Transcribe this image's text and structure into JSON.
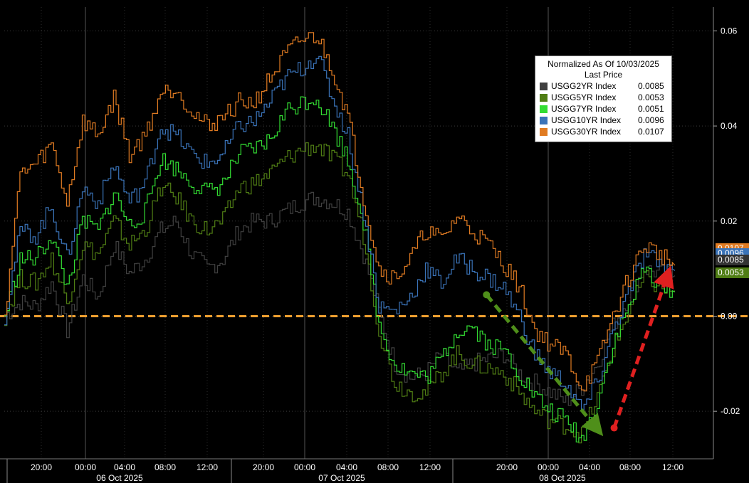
{
  "chart_data": {
    "type": "line",
    "title": "",
    "xlabel": "",
    "ylabel": "",
    "ylim": [
      -0.03,
      0.065
    ],
    "y_ticks": [
      "0.06",
      "0.04",
      "0.02",
      "0.00",
      "-0.02"
    ],
    "y_tick_values": [
      0.06,
      0.04,
      0.02,
      0.0,
      -0.02
    ],
    "x_ticks": [
      "20:00",
      "00:00",
      "04:00",
      "08:00",
      "12:00",
      "20:00",
      "00:00",
      "04:00",
      "08:00",
      "12:00",
      "20:00",
      "00:00",
      "04:00",
      "08:00",
      "12:00"
    ],
    "date_labels": [
      "06 Oct 2025",
      "07 Oct 2025",
      "08 Oct 2025"
    ],
    "legend": {
      "title_line1": "Normalized As Of 10/03/2025",
      "title_line2": "Last Price",
      "placement": "top-right"
    },
    "series": [
      {
        "name": "USGG2YR Index",
        "last": "0.0085",
        "color": "#404040",
        "values": [
          0,
          0.003,
          0.002,
          0.007,
          -0.003,
          0.008,
          0.004,
          0.015,
          0.009,
          0.012,
          0.018,
          0.02,
          0.013,
          0.01,
          0.012,
          0.018,
          0.02,
          0.02,
          0.022,
          0.024,
          0.025,
          0.024,
          0.022,
          0.013,
          0.001,
          -0.01,
          -0.013,
          -0.012,
          -0.008,
          -0.012,
          -0.01,
          -0.009,
          -0.008,
          -0.012,
          -0.014,
          -0.016,
          -0.018,
          -0.015,
          -0.01,
          -0.002,
          0.004,
          0.01,
          0.009,
          0.0085
        ]
      },
      {
        "name": "USGG5YR Index",
        "last": "0.0053",
        "color": "#4f7d14",
        "values": [
          0,
          0.008,
          0.007,
          0.012,
          0.003,
          0.015,
          0.013,
          0.02,
          0.015,
          0.018,
          0.027,
          0.025,
          0.02,
          0.018,
          0.02,
          0.027,
          0.028,
          0.03,
          0.033,
          0.035,
          0.036,
          0.033,
          0.03,
          0.017,
          -0.003,
          -0.014,
          -0.016,
          -0.016,
          -0.012,
          -0.008,
          -0.01,
          -0.011,
          -0.012,
          -0.016,
          -0.02,
          -0.022,
          -0.023,
          -0.025,
          -0.017,
          -0.007,
          0.001,
          0.008,
          0.006,
          0.0053
        ]
      },
      {
        "name": "USGG7YR Index",
        "last": "0.0051",
        "color": "#33dd33",
        "values": [
          0,
          0.012,
          0.012,
          0.017,
          0.006,
          0.02,
          0.018,
          0.026,
          0.019,
          0.022,
          0.033,
          0.031,
          0.028,
          0.026,
          0.028,
          0.034,
          0.035,
          0.037,
          0.043,
          0.045,
          0.046,
          0.04,
          0.033,
          0.02,
          -0.002,
          -0.01,
          -0.012,
          -0.013,
          -0.009,
          -0.003,
          -0.002,
          -0.006,
          -0.007,
          -0.012,
          -0.017,
          -0.02,
          -0.022,
          -0.026,
          -0.018,
          -0.006,
          0.002,
          0.01,
          0.007,
          0.0051
        ]
      },
      {
        "name": "USGG10YR Index",
        "last": "0.0096",
        "color": "#3a73b8",
        "values": [
          0,
          0.018,
          0.017,
          0.023,
          0.012,
          0.027,
          0.024,
          0.032,
          0.024,
          0.028,
          0.04,
          0.038,
          0.034,
          0.032,
          0.034,
          0.04,
          0.041,
          0.045,
          0.05,
          0.052,
          0.055,
          0.046,
          0.038,
          0.022,
          0.002,
          0.001,
          0.004,
          0.01,
          0.007,
          0.012,
          0.01,
          0.008,
          0.006,
          0.0,
          -0.008,
          -0.012,
          -0.014,
          -0.02,
          -0.014,
          -0.003,
          0.005,
          0.013,
          0.011,
          0.0096
        ]
      },
      {
        "name": "USGG30YR Index",
        "last": "0.0107",
        "color": "#e07b22",
        "values": [
          0,
          0.03,
          0.032,
          0.036,
          0.024,
          0.041,
          0.038,
          0.046,
          0.034,
          0.038,
          0.047,
          0.048,
          0.043,
          0.04,
          0.042,
          0.045,
          0.045,
          0.05,
          0.055,
          0.058,
          0.059,
          0.052,
          0.042,
          0.025,
          0.01,
          0.008,
          0.012,
          0.018,
          0.016,
          0.021,
          0.018,
          0.015,
          0.011,
          0.006,
          -0.003,
          -0.006,
          -0.008,
          -0.015,
          -0.01,
          0.0,
          0.008,
          0.015,
          0.013,
          0.0107
        ]
      }
    ],
    "reference_line": {
      "y": 0.0,
      "color": "#f0a030"
    },
    "annotations": [
      {
        "type": "arrow",
        "color": "#4f8f1a",
        "from": [
          0.68,
          0.0045
        ],
        "to": [
          0.835,
          -0.0235
        ]
      },
      {
        "type": "arrow",
        "color": "#e02020",
        "from": [
          0.86,
          -0.0235
        ],
        "to": [
          0.935,
          0.0085
        ]
      }
    ]
  }
}
